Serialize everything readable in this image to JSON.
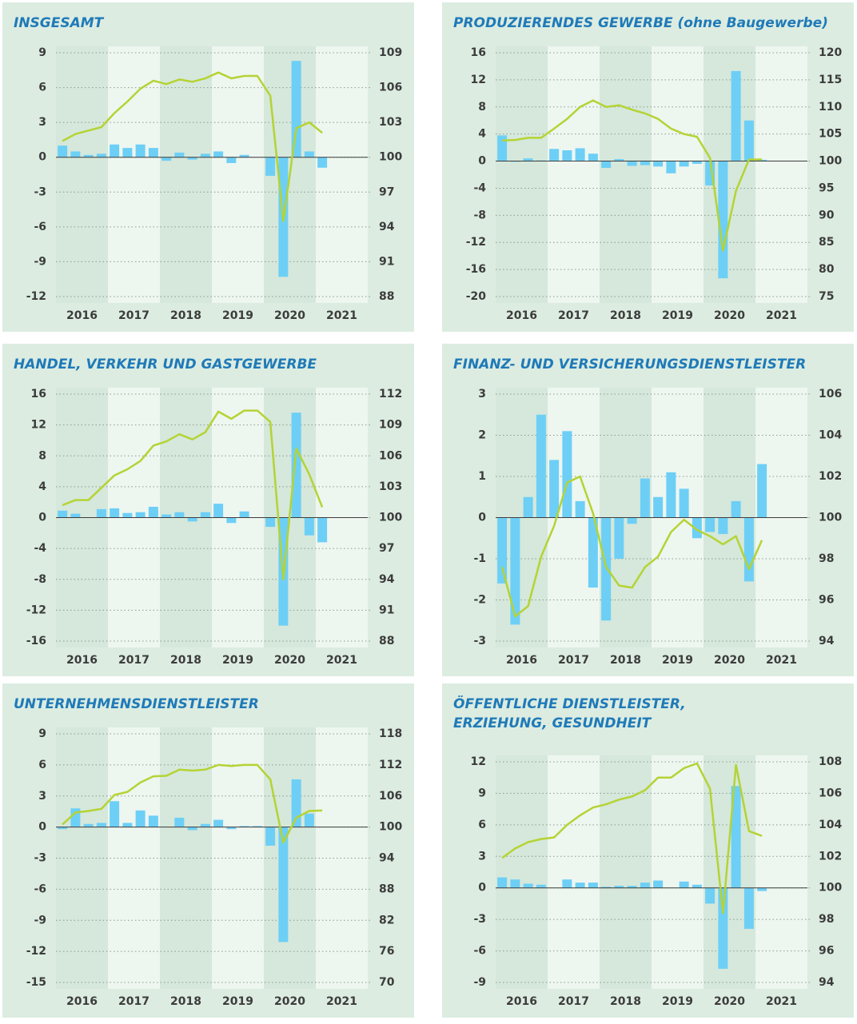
{
  "chart_data": [
    {
      "type": "combo",
      "title": "INSGESAMT",
      "years": [
        "2016",
        "2017",
        "2018",
        "2019",
        "2020",
        "2021"
      ],
      "ylim": [
        -12,
        9
      ],
      "yticks": [
        -12,
        -9,
        -6,
        -3,
        0,
        3,
        6,
        9
      ],
      "y2lim": [
        88,
        109
      ],
      "y2ticks": [
        88,
        91,
        94,
        97,
        100,
        103,
        106,
        109
      ],
      "grid": true,
      "series": [
        {
          "type": "bar",
          "color": "#6dcff6",
          "values": [
            1.0,
            0.5,
            0.2,
            0.3,
            1.1,
            0.8,
            1.1,
            0.8,
            -0.3,
            0.4,
            -0.2,
            0.3,
            0.5,
            -0.5,
            0.2,
            0,
            -1.6,
            -10.3,
            8.3,
            0.5,
            -0.9
          ]
        },
        {
          "type": "line",
          "axis": "y2",
          "color": "#b5d334",
          "values": [
            101.4,
            102.0,
            102.3,
            102.6,
            103.8,
            104.8,
            105.9,
            106.6,
            106.3,
            106.7,
            106.5,
            106.8,
            107.3,
            106.8,
            107.0,
            107.0,
            105.3,
            94.5,
            102.5,
            103.0,
            102.1
          ]
        }
      ]
    },
    {
      "type": "combo",
      "title": "PRODUZIERENDES GEWERBE (ohne Baugewerbe)",
      "years": [
        "2016",
        "2017",
        "2018",
        "2019",
        "2020",
        "2021"
      ],
      "ylim": [
        -20,
        16
      ],
      "yticks": [
        -20,
        -16,
        -12,
        -8,
        -4,
        0,
        4,
        8,
        12,
        16
      ],
      "y2lim": [
        75,
        120
      ],
      "y2ticks": [
        75,
        80,
        85,
        90,
        95,
        100,
        105,
        110,
        115,
        120
      ],
      "grid": true,
      "series": [
        {
          "type": "bar",
          "color": "#6dcff6",
          "values": [
            3.8,
            -0.1,
            0.4,
            0.1,
            1.8,
            1.6,
            1.9,
            1.1,
            -1.0,
            0.3,
            -0.7,
            -0.6,
            -0.8,
            -1.8,
            -0.8,
            -0.4,
            -3.6,
            -17.3,
            13.3,
            6.0,
            0.2
          ]
        },
        {
          "type": "line",
          "axis": "y2",
          "color": "#b5d334",
          "values": [
            103.8,
            103.9,
            104.3,
            104.3,
            106.0,
            107.8,
            110.0,
            111.2,
            110.0,
            110.3,
            109.5,
            108.8,
            107.8,
            106.0,
            105.0,
            104.5,
            100.6,
            83.5,
            94.5,
            100.3,
            100.3
          ]
        }
      ]
    },
    {
      "type": "combo",
      "title": "HANDEL, VERKEHR UND GASTGEWERBE",
      "years": [
        "2016",
        "2017",
        "2018",
        "2019",
        "2020",
        "2021"
      ],
      "ylim": [
        -16,
        16
      ],
      "yticks": [
        -16,
        -12,
        -8,
        -4,
        0,
        4,
        8,
        12,
        16
      ],
      "y2lim": [
        88,
        112
      ],
      "y2ticks": [
        88,
        91,
        94,
        97,
        100,
        103,
        106,
        109,
        112
      ],
      "grid": true,
      "series": [
        {
          "type": "bar",
          "color": "#6dcff6",
          "values": [
            0.9,
            0.5,
            0,
            1.1,
            1.2,
            0.6,
            0.7,
            1.4,
            0.4,
            0.7,
            -0.5,
            0.7,
            1.8,
            -0.7,
            0.8,
            0,
            -1.2,
            -14.0,
            13.6,
            -2.3,
            -3.2
          ]
        },
        {
          "type": "line",
          "axis": "y2",
          "color": "#b5d334",
          "values": [
            101.2,
            101.7,
            101.7,
            102.9,
            104.1,
            104.7,
            105.5,
            107.0,
            107.4,
            108.1,
            107.6,
            108.3,
            110.3,
            109.6,
            110.4,
            110.4,
            109.3,
            94.0,
            106.7,
            104.2,
            101.0
          ]
        }
      ]
    },
    {
      "type": "combo",
      "title": "FINANZ- UND VERSICHERUNGSDIENSTLEISTER",
      "years": [
        "2016",
        "2017",
        "2018",
        "2019",
        "2020",
        "2021"
      ],
      "ylim": [
        -3,
        3
      ],
      "yticks": [
        -3,
        -2,
        -1,
        0,
        1,
        2,
        3
      ],
      "y2lim": [
        94,
        106
      ],
      "y2ticks": [
        94,
        96,
        98,
        100,
        102,
        104,
        106
      ],
      "grid": true,
      "series": [
        {
          "type": "bar",
          "color": "#6dcff6",
          "values": [
            -1.6,
            -2.6,
            0.5,
            2.5,
            1.4,
            2.1,
            0.4,
            -1.7,
            -2.5,
            -1.0,
            -0.15,
            0.95,
            0.5,
            1.1,
            0.7,
            -0.5,
            -0.35,
            -0.4,
            0.4,
            -1.55,
            1.3
          ]
        },
        {
          "type": "line",
          "axis": "y2",
          "color": "#b5d334",
          "values": [
            97.6,
            95.2,
            95.7,
            98.1,
            99.6,
            101.7,
            102.0,
            100.2,
            97.6,
            96.7,
            96.6,
            97.6,
            98.1,
            99.3,
            99.9,
            99.4,
            99.1,
            98.7,
            99.1,
            97.5,
            98.9
          ]
        }
      ]
    },
    {
      "type": "combo",
      "title": "UNTERNEHMENSDIENSTLEISTER",
      "years": [
        "2016",
        "2017",
        "2018",
        "2019",
        "2020",
        "2021"
      ],
      "ylim": [
        -15,
        9
      ],
      "yticks": [
        -15,
        -12,
        -9,
        -6,
        -3,
        0,
        3,
        6,
        9
      ],
      "y2lim": [
        70,
        118
      ],
      "y2ticks": [
        70,
        76,
        82,
        88,
        94,
        100,
        106,
        112,
        118
      ],
      "grid": true,
      "series": [
        {
          "type": "bar",
          "color": "#6dcff6",
          "values": [
            -0.2,
            1.8,
            0.3,
            0.4,
            2.5,
            0.4,
            1.6,
            1.1,
            0,
            0.9,
            -0.3,
            0.3,
            0.7,
            -0.2,
            0.1,
            0.1,
            -1.8,
            -11.1,
            4.6,
            1.3,
            null
          ]
        },
        {
          "type": "line",
          "axis": "y2",
          "color": "#b5d334",
          "values": [
            100.5,
            102.8,
            103.1,
            103.5,
            106.2,
            106.8,
            108.6,
            109.8,
            109.9,
            111.1,
            110.9,
            111.1,
            112.0,
            111.8,
            112.0,
            112.0,
            109.2,
            97.0,
            101.8,
            103.1,
            103.2
          ]
        }
      ]
    },
    {
      "type": "combo",
      "title": [
        "ÖFFENTLICHE DIENSTLEISTER,",
        "ERZIEHUNG, GESUNDHEIT"
      ],
      "years": [
        "2016",
        "2017",
        "2018",
        "2019",
        "2020",
        "2021"
      ],
      "ylim": [
        -9,
        12
      ],
      "yticks": [
        -9,
        -6,
        -3,
        0,
        3,
        6,
        9,
        12
      ],
      "y2lim": [
        94,
        108
      ],
      "y2ticks": [
        94,
        96,
        98,
        100,
        102,
        104,
        106,
        108
      ],
      "grid": true,
      "series": [
        {
          "type": "bar",
          "color": "#6dcff6",
          "values": [
            1.0,
            0.8,
            0.4,
            0.3,
            0,
            0.8,
            0.5,
            0.5,
            0.1,
            0.2,
            0.2,
            0.5,
            0.7,
            0,
            0.6,
            0.3,
            -1.5,
            -7.7,
            9.7,
            -3.9,
            -0.3
          ]
        },
        {
          "type": "line",
          "axis": "y2",
          "color": "#b5d334",
          "values": [
            101.9,
            102.5,
            102.9,
            103.1,
            103.2,
            104.0,
            104.6,
            105.1,
            105.3,
            105.6,
            105.8,
            106.2,
            107.0,
            107.0,
            107.6,
            107.9,
            106.3,
            98.4,
            107.8,
            103.6,
            103.3
          ]
        }
      ]
    }
  ]
}
